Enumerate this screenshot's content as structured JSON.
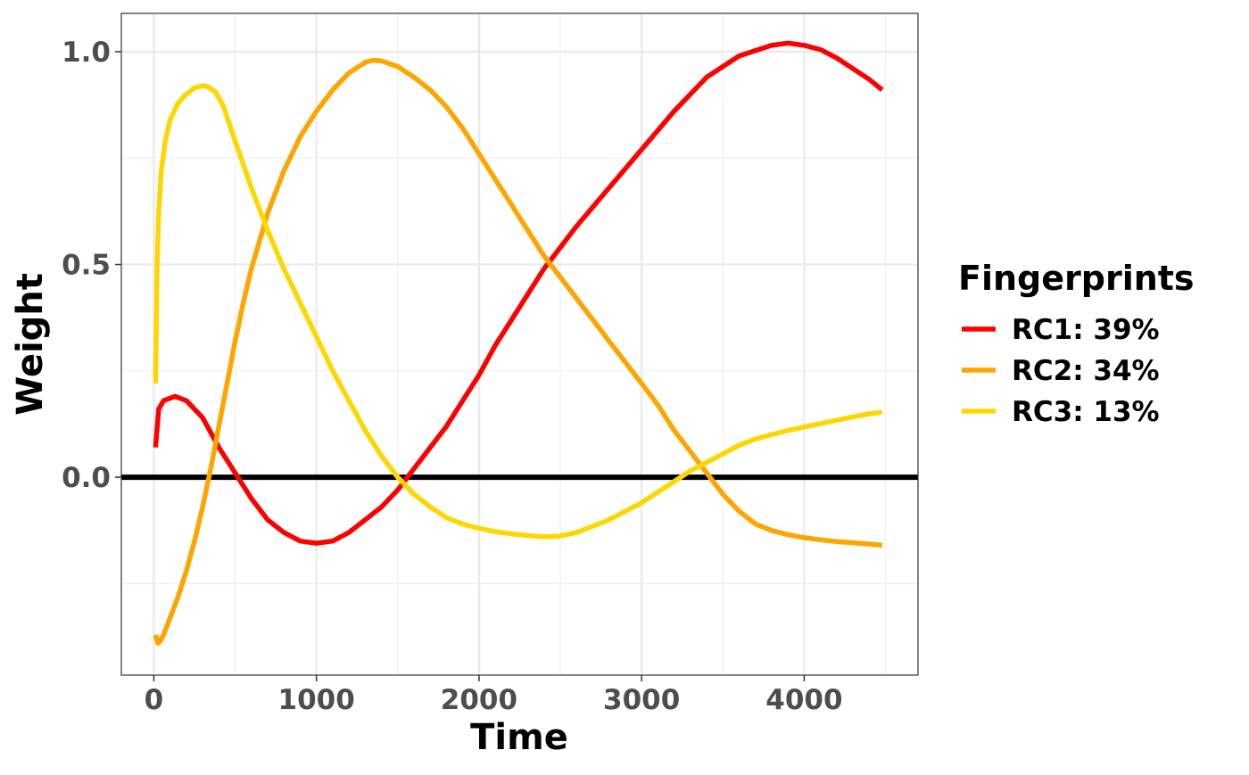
{
  "chart_data": {
    "type": "line",
    "title": "",
    "xlabel": "Time",
    "ylabel": "Weight",
    "xlim": [
      -200,
      4700
    ],
    "ylim": [
      -0.465,
      1.09
    ],
    "x_ticks": [
      0,
      1000,
      2000,
      3000,
      4000
    ],
    "x_tick_labels": [
      "0",
      "1000",
      "2000",
      "3000",
      "4000"
    ],
    "y_ticks": [
      0.0,
      0.5,
      1.0
    ],
    "y_tick_labels": [
      "0.0",
      "0.5",
      "1.0"
    ],
    "grid": true,
    "reference_line": {
      "y": 0.0,
      "color": "#000000"
    },
    "legend": {
      "title": "Fingerprints",
      "position": "right"
    },
    "series": [
      {
        "name": "RC1: 39%",
        "color": "#FF0000",
        "points": [
          [
            10,
            0.07
          ],
          [
            30,
            0.16
          ],
          [
            60,
            0.18
          ],
          [
            130,
            0.19
          ],
          [
            200,
            0.18
          ],
          [
            300,
            0.14
          ],
          [
            400,
            0.07
          ],
          [
            500,
            0.01
          ],
          [
            600,
            -0.05
          ],
          [
            700,
            -0.1
          ],
          [
            800,
            -0.13
          ],
          [
            900,
            -0.15
          ],
          [
            1000,
            -0.155
          ],
          [
            1100,
            -0.15
          ],
          [
            1200,
            -0.13
          ],
          [
            1300,
            -0.1
          ],
          [
            1400,
            -0.07
          ],
          [
            1500,
            -0.03
          ],
          [
            1600,
            0.02
          ],
          [
            1700,
            0.07
          ],
          [
            1800,
            0.12
          ],
          [
            1900,
            0.18
          ],
          [
            2000,
            0.24
          ],
          [
            2100,
            0.31
          ],
          [
            2200,
            0.37
          ],
          [
            2300,
            0.43
          ],
          [
            2400,
            0.49
          ],
          [
            2500,
            0.54
          ],
          [
            2600,
            0.59
          ],
          [
            2800,
            0.68
          ],
          [
            3000,
            0.77
          ],
          [
            3200,
            0.86
          ],
          [
            3400,
            0.94
          ],
          [
            3600,
            0.99
          ],
          [
            3800,
            1.015
          ],
          [
            3900,
            1.02
          ],
          [
            4000,
            1.015
          ],
          [
            4100,
            1.005
          ],
          [
            4200,
            0.985
          ],
          [
            4300,
            0.96
          ],
          [
            4400,
            0.935
          ],
          [
            4480,
            0.91
          ]
        ]
      },
      {
        "name": "RC2: 34%",
        "color": "#FFA500",
        "points": [
          [
            10,
            -0.37
          ],
          [
            25,
            -0.39
          ],
          [
            40,
            -0.385
          ],
          [
            60,
            -0.37
          ],
          [
            100,
            -0.33
          ],
          [
            150,
            -0.28
          ],
          [
            200,
            -0.22
          ],
          [
            250,
            -0.15
          ],
          [
            300,
            -0.07
          ],
          [
            350,
            0.02
          ],
          [
            400,
            0.12
          ],
          [
            450,
            0.22
          ],
          [
            500,
            0.32
          ],
          [
            550,
            0.41
          ],
          [
            600,
            0.49
          ],
          [
            700,
            0.62
          ],
          [
            800,
            0.72
          ],
          [
            900,
            0.8
          ],
          [
            1000,
            0.86
          ],
          [
            1100,
            0.91
          ],
          [
            1200,
            0.95
          ],
          [
            1300,
            0.975
          ],
          [
            1350,
            0.98
          ],
          [
            1400,
            0.978
          ],
          [
            1500,
            0.965
          ],
          [
            1600,
            0.94
          ],
          [
            1700,
            0.91
          ],
          [
            1800,
            0.87
          ],
          [
            1900,
            0.82
          ],
          [
            2000,
            0.76
          ],
          [
            2100,
            0.7
          ],
          [
            2200,
            0.64
          ],
          [
            2300,
            0.58
          ],
          [
            2400,
            0.52
          ],
          [
            2500,
            0.47
          ],
          [
            2600,
            0.42
          ],
          [
            2700,
            0.37
          ],
          [
            2800,
            0.32
          ],
          [
            2900,
            0.27
          ],
          [
            3000,
            0.22
          ],
          [
            3100,
            0.17
          ],
          [
            3200,
            0.11
          ],
          [
            3300,
            0.06
          ],
          [
            3400,
            0.01
          ],
          [
            3500,
            -0.04
          ],
          [
            3600,
            -0.08
          ],
          [
            3700,
            -0.11
          ],
          [
            3800,
            -0.125
          ],
          [
            3900,
            -0.135
          ],
          [
            4000,
            -0.142
          ],
          [
            4100,
            -0.147
          ],
          [
            4200,
            -0.151
          ],
          [
            4300,
            -0.154
          ],
          [
            4400,
            -0.157
          ],
          [
            4480,
            -0.16
          ]
        ]
      },
      {
        "name": "RC3: 13%",
        "color": "#FFD700",
        "points": [
          [
            10,
            0.22
          ],
          [
            15,
            0.35
          ],
          [
            20,
            0.5
          ],
          [
            30,
            0.62
          ],
          [
            45,
            0.72
          ],
          [
            70,
            0.79
          ],
          [
            100,
            0.84
          ],
          [
            150,
            0.88
          ],
          [
            200,
            0.9
          ],
          [
            250,
            0.915
          ],
          [
            300,
            0.92
          ],
          [
            330,
            0.918
          ],
          [
            380,
            0.905
          ],
          [
            430,
            0.87
          ],
          [
            500,
            0.79
          ],
          [
            600,
            0.68
          ],
          [
            700,
            0.58
          ],
          [
            800,
            0.49
          ],
          [
            900,
            0.41
          ],
          [
            1000,
            0.33
          ],
          [
            1100,
            0.25
          ],
          [
            1200,
            0.18
          ],
          [
            1300,
            0.11
          ],
          [
            1400,
            0.05
          ],
          [
            1500,
            0.0
          ],
          [
            1600,
            -0.04
          ],
          [
            1700,
            -0.07
          ],
          [
            1800,
            -0.095
          ],
          [
            1900,
            -0.11
          ],
          [
            2000,
            -0.12
          ],
          [
            2100,
            -0.128
          ],
          [
            2200,
            -0.133
          ],
          [
            2300,
            -0.137
          ],
          [
            2400,
            -0.14
          ],
          [
            2500,
            -0.138
          ],
          [
            2600,
            -0.13
          ],
          [
            2700,
            -0.115
          ],
          [
            2800,
            -0.1
          ],
          [
            2900,
            -0.08
          ],
          [
            3000,
            -0.06
          ],
          [
            3100,
            -0.035
          ],
          [
            3200,
            -0.01
          ],
          [
            3300,
            0.015
          ],
          [
            3400,
            0.035
          ],
          [
            3500,
            0.055
          ],
          [
            3600,
            0.075
          ],
          [
            3700,
            0.09
          ],
          [
            3800,
            0.1
          ],
          [
            3900,
            0.11
          ],
          [
            4000,
            0.118
          ],
          [
            4100,
            0.126
          ],
          [
            4200,
            0.134
          ],
          [
            4300,
            0.142
          ],
          [
            4400,
            0.149
          ],
          [
            4480,
            0.153
          ]
        ]
      }
    ]
  }
}
